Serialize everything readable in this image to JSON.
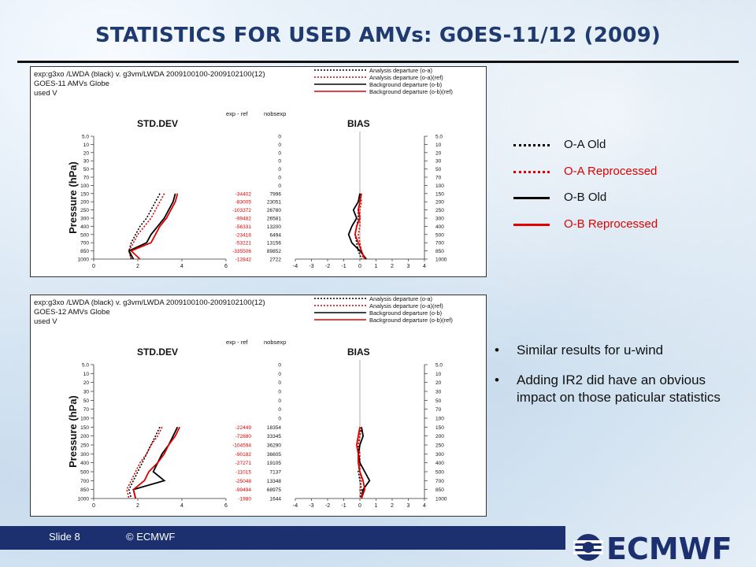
{
  "slide": {
    "title": "STATISTICS FOR USED AMVs: GOES-11/12 (2009)",
    "footer": {
      "slide_label": "Slide 8",
      "copyright": "© ECMWF"
    },
    "logo_text": "ECMWF",
    "colors": {
      "title": "#1f3a6e",
      "footer_bar": "#1c2f6e",
      "old": "#000000",
      "reprocessed": "#e00000"
    }
  },
  "legend": [
    {
      "label": "O-A Old",
      "style": "dotted",
      "color": "#000000"
    },
    {
      "label": "O-A Reprocessed",
      "style": "dotted",
      "color": "#e00000"
    },
    {
      "label": "O-B Old",
      "style": "solid",
      "color": "#000000"
    },
    {
      "label": "O-B Reprocessed",
      "style": "solid",
      "color": "#e00000"
    }
  ],
  "bullets": [
    "Similar results for u-wind",
    "Adding IR2 did have an obvious impact on those paticular statistics"
  ],
  "chart_data": [
    {
      "type": "line",
      "header": [
        "exp:g3xo /LWDA (black)  v. g3vm/LWDA 2009100100-2009102100(12)",
        "GOES-11 AMVs  Globe",
        "used V"
      ],
      "legend": [
        "Analysis departure (o-a)",
        "Analysis departure (o-a)(ref)",
        "Background departure (o-b)",
        "Background departure (o-b)(ref)"
      ],
      "ylabel": "Pressure (hPa)",
      "yticks": [
        "5.0",
        "10",
        "20",
        "30",
        "50",
        "70",
        "100",
        "150",
        "200",
        "250",
        "300",
        "400",
        "500",
        "700",
        "850",
        "1000"
      ],
      "std_title": "STD.DEV",
      "bias_title": "BIAS",
      "std_xticks": [
        "0",
        "2",
        "4",
        "6"
      ],
      "std_xlim": [
        0,
        6
      ],
      "bias_xticks": [
        "-4",
        "-3",
        "-2",
        "-1",
        "0",
        "1",
        "2",
        "3",
        "4"
      ],
      "bias_xlim": [
        -4,
        4
      ],
      "col1_header": "exp - ref",
      "col2_header": "nobsexp",
      "col1": [
        "",
        "",
        "",
        "",
        "",
        "",
        "",
        "-34402",
        "-83005",
        "-103372",
        "-99482",
        "-56331",
        "-23416",
        "-53221",
        "-335506",
        "-12842"
      ],
      "col2": [
        "0",
        "0",
        "0",
        "0",
        "0",
        "0",
        "0",
        "7996",
        "23051",
        "26780",
        "26581",
        "13200",
        "6494",
        "13156",
        "89852",
        "2722"
      ],
      "levels": [
        150,
        200,
        250,
        300,
        400,
        500,
        700,
        850,
        1000
      ],
      "std_series": [
        {
          "name": "Analysis departure (o-a)",
          "values": [
            3.0,
            2.8,
            2.6,
            2.4,
            2.1,
            1.9,
            1.7,
            1.6,
            1.7
          ]
        },
        {
          "name": "Analysis departure (o-a)(ref)",
          "values": [
            3.2,
            3.0,
            2.8,
            2.6,
            2.3,
            2.0,
            1.8,
            1.6,
            1.7
          ]
        },
        {
          "name": "Background departure (o-b)",
          "values": [
            3.7,
            3.6,
            3.4,
            3.2,
            2.9,
            2.6,
            2.4,
            1.6,
            1.8
          ]
        },
        {
          "name": "Background departure (o-b)(ref)",
          "values": [
            3.8,
            3.7,
            3.5,
            3.3,
            3.0,
            2.8,
            2.6,
            1.7,
            2.1
          ]
        }
      ],
      "bias_series": [
        {
          "name": "Analysis departure (o-a)",
          "values": [
            0.0,
            0.0,
            -0.1,
            -0.1,
            -0.2,
            -0.3,
            -0.2,
            -0.1,
            0.1
          ]
        },
        {
          "name": "Analysis departure (o-a)(ref)",
          "values": [
            0.0,
            0.1,
            0.0,
            0.0,
            0.0,
            -0.1,
            0.0,
            0.1,
            0.2
          ]
        },
        {
          "name": "Background departure (o-b)",
          "values": [
            0.0,
            -0.1,
            -0.4,
            -0.2,
            -0.5,
            -0.7,
            -0.5,
            0.0,
            0.4
          ]
        },
        {
          "name": "Background departure (o-b)(ref)",
          "values": [
            0.1,
            0.0,
            -0.1,
            0.0,
            -0.2,
            -0.3,
            -0.1,
            0.1,
            0.3
          ]
        }
      ]
    },
    {
      "type": "line",
      "header": [
        "exp:g3xo /LWDA (black)  v. g3vm/LWDA 2009100100-2009102100(12)",
        "GOES-12 AMVs  Globe",
        "used V"
      ],
      "legend": [
        "Analysis departure (o-a)",
        "Analysis departure (o-a)(ref)",
        "Background departure (o-b)",
        "Background departure (o-b)(ref)"
      ],
      "ylabel": "Pressure (hPa)",
      "yticks": [
        "5.0",
        "10",
        "20",
        "30",
        "50",
        "70",
        "100",
        "150",
        "200",
        "250",
        "300",
        "400",
        "500",
        "700",
        "850",
        "1000"
      ],
      "std_title": "STD.DEV",
      "bias_title": "BIAS",
      "std_xticks": [
        "0",
        "2",
        "4",
        "6"
      ],
      "std_xlim": [
        0,
        6
      ],
      "bias_xticks": [
        "-4",
        "-3",
        "-2",
        "-1",
        "0",
        "1",
        "2",
        "3",
        "4"
      ],
      "bias_xlim": [
        -4,
        4
      ],
      "col1_header": "exp - ref",
      "col2_header": "nobsexp",
      "col1": [
        "",
        "",
        "",
        "",
        "",
        "",
        "",
        "-22449",
        "-72880",
        "-104594",
        "-90182",
        "-27271",
        "-11015",
        "-25048",
        "-99494",
        "-1980"
      ],
      "col2": [
        "0",
        "0",
        "0",
        "0",
        "0",
        "0",
        "0",
        "18354",
        "33345",
        "36290",
        "36605",
        "19105",
        "7137",
        "13348",
        "68975",
        "1644"
      ],
      "levels": [
        150,
        200,
        250,
        300,
        400,
        500,
        700,
        850,
        1000
      ],
      "std_series": [
        {
          "name": "Analysis departure (o-a)",
          "values": [
            3.0,
            2.8,
            2.6,
            2.4,
            2.2,
            2.0,
            1.8,
            1.6,
            1.7
          ]
        },
        {
          "name": "Analysis departure (o-a)(ref)",
          "values": [
            3.1,
            2.9,
            2.6,
            2.4,
            2.1,
            1.9,
            1.7,
            1.5,
            1.6
          ]
        },
        {
          "name": "Background departure (o-b)",
          "values": [
            3.8,
            3.6,
            3.4,
            3.1,
            2.9,
            2.7,
            3.2,
            1.8,
            1.9
          ]
        },
        {
          "name": "Background departure (o-b)(ref)",
          "values": [
            3.9,
            3.7,
            3.4,
            3.2,
            2.9,
            2.5,
            2.3,
            1.8,
            1.9
          ]
        }
      ],
      "bias_series": [
        {
          "name": "Analysis departure (o-a)",
          "values": [
            0.1,
            0.0,
            -0.1,
            -0.1,
            0.0,
            -0.1,
            0.0,
            0.1,
            0.0
          ]
        },
        {
          "name": "Analysis departure (o-a)(ref)",
          "values": [
            0.0,
            0.0,
            -0.1,
            0.0,
            0.0,
            0.0,
            0.1,
            0.0,
            0.1
          ]
        },
        {
          "name": "Background departure (o-b)",
          "values": [
            0.1,
            0.2,
            0.0,
            -0.1,
            0.0,
            0.3,
            0.6,
            0.2,
            0.1
          ]
        },
        {
          "name": "Background departure (o-b)(ref)",
          "values": [
            0.0,
            -0.1,
            -0.2,
            -0.1,
            -0.1,
            0.0,
            0.2,
            0.3,
            0.1
          ]
        }
      ]
    }
  ]
}
